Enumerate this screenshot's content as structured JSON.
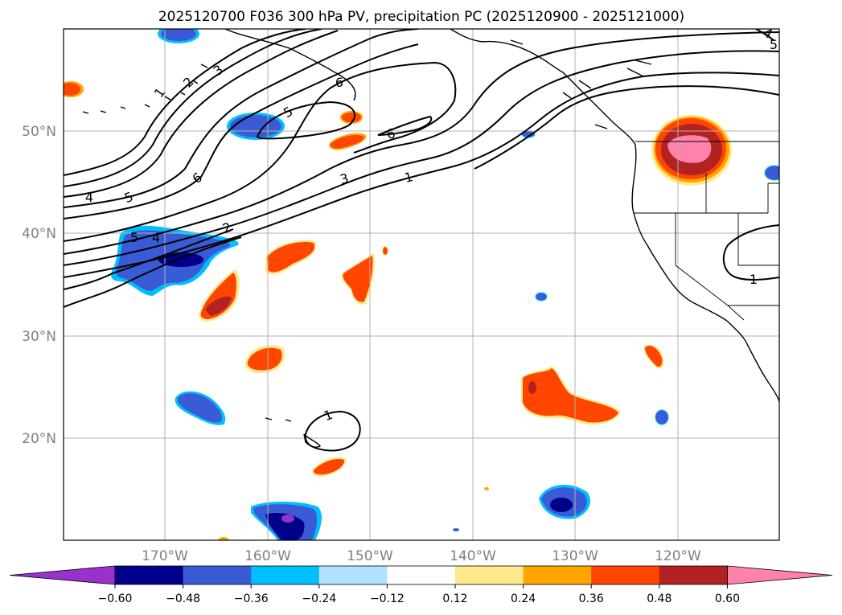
{
  "title": "2025120700 F036 300 hPa PV, precipitation PC (2025120900 - 2025121000)",
  "lat_labels": [
    "50°N",
    "40°N",
    "30°N",
    "20°N"
  ],
  "lon_labels": [
    "170°W",
    "160°W",
    "150°W",
    "140°W",
    "130°W",
    "120°W"
  ],
  "colorbar": {
    "colors": [
      "#9932CC",
      "#00008B",
      "#3A5BD6",
      "#00BFFF",
      "#B0E2FF",
      "#FFFFFF",
      "#FFE98A",
      "#FFA500",
      "#FF4500",
      "#B22222",
      "#FF82AB"
    ],
    "ticks": [
      "−0.60",
      "−0.48",
      "−0.36",
      "−0.24",
      "−0.12",
      "0.12",
      "0.24",
      "0.36",
      "0.48",
      "0.60"
    ]
  },
  "pv_contour_labels": [
    "1",
    "2",
    "3",
    "4",
    "5",
    "6",
    "5",
    "6",
    "6",
    "3",
    "1",
    "4",
    "5",
    "5",
    "4",
    "2",
    "1",
    "1",
    "4",
    "5"
  ]
}
